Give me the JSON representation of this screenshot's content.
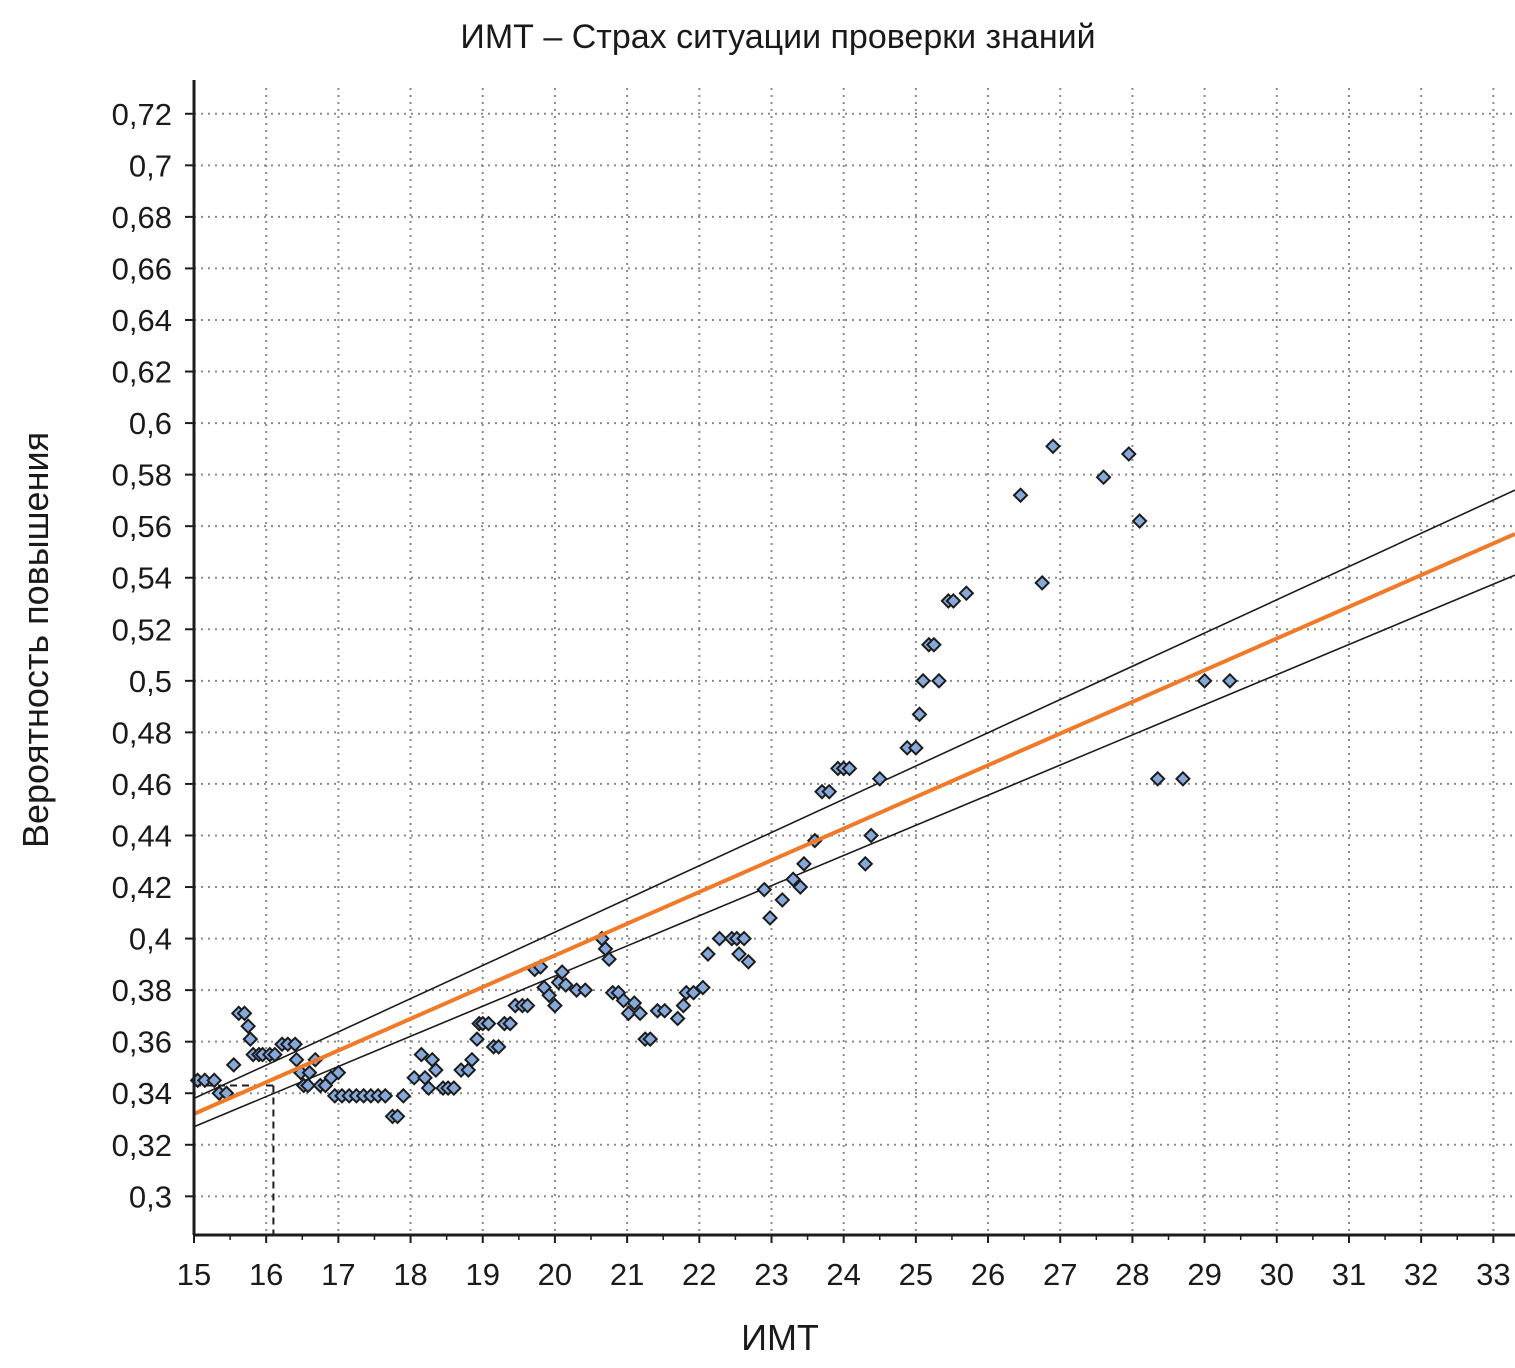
{
  "chart_data": {
    "type": "scatter",
    "title": "ИМТ – Страх ситуации проверки знаний",
    "xlabel": "ИМТ",
    "ylabel": "Вероятность повышения",
    "xlim": [
      15,
      33.3
    ],
    "ylim": [
      0.285,
      0.73
    ],
    "x_ticks": [
      "15",
      "16",
      "17",
      "18",
      "19",
      "20",
      "21",
      "22",
      "23",
      "24",
      "25",
      "26",
      "27",
      "28",
      "29",
      "30",
      "31",
      "32",
      "33"
    ],
    "y_ticks": [
      "0,3",
      "0,32",
      "0,34",
      "0,36",
      "0,38",
      "0,4",
      "0,42",
      "0,44",
      "0,46",
      "0,48",
      "0,5",
      "0,52",
      "0,54",
      "0,56",
      "0,58",
      "0,6",
      "0,62",
      "0,64",
      "0,66",
      "0,68",
      "0,7",
      "0,72"
    ],
    "grid": true,
    "grid_style": "dotted",
    "marker": "diamond",
    "colors": {
      "points": "#86a9dc",
      "point_edge": "#1c1c1c",
      "fit": "#ee7a2a",
      "ci": "#1c1c1c",
      "grid": "#8a8a8a",
      "reference": "#1c1c1c"
    },
    "fit_line": {
      "x": [
        15,
        33.3
      ],
      "y": [
        0.332,
        0.557
      ]
    },
    "ci_upper": {
      "x": [
        15,
        33.3
      ],
      "y": [
        0.338,
        0.574
      ]
    },
    "ci_lower": {
      "x": [
        15,
        33.3
      ],
      "y": [
        0.327,
        0.541
      ]
    },
    "reference_point": {
      "x": 16.1,
      "y": 0.343
    },
    "series": [
      {
        "points": [
          [
            15.05,
            0.345
          ],
          [
            15.15,
            0.345
          ],
          [
            15.28,
            0.345
          ],
          [
            15.35,
            0.34
          ],
          [
            15.45,
            0.34
          ],
          [
            15.55,
            0.351
          ],
          [
            15.62,
            0.371
          ],
          [
            15.7,
            0.371
          ],
          [
            15.75,
            0.366
          ],
          [
            15.78,
            0.361
          ],
          [
            15.82,
            0.355
          ],
          [
            15.9,
            0.355
          ],
          [
            15.95,
            0.355
          ],
          [
            16.05,
            0.355
          ],
          [
            16.12,
            0.355
          ],
          [
            16.22,
            0.359
          ],
          [
            16.3,
            0.359
          ],
          [
            16.4,
            0.359
          ],
          [
            16.42,
            0.353
          ],
          [
            16.48,
            0.348
          ],
          [
            16.52,
            0.343
          ],
          [
            16.58,
            0.343
          ],
          [
            16.6,
            0.348
          ],
          [
            16.68,
            0.353
          ],
          [
            16.75,
            0.343
          ],
          [
            16.82,
            0.343
          ],
          [
            16.9,
            0.346
          ],
          [
            16.95,
            0.339
          ],
          [
            17.0,
            0.348
          ],
          [
            17.05,
            0.339
          ],
          [
            17.15,
            0.339
          ],
          [
            17.25,
            0.339
          ],
          [
            17.35,
            0.339
          ],
          [
            17.45,
            0.339
          ],
          [
            17.55,
            0.339
          ],
          [
            17.65,
            0.339
          ],
          [
            17.75,
            0.331
          ],
          [
            17.82,
            0.331
          ],
          [
            17.9,
            0.339
          ],
          [
            18.05,
            0.346
          ],
          [
            18.15,
            0.355
          ],
          [
            18.2,
            0.346
          ],
          [
            18.25,
            0.342
          ],
          [
            18.3,
            0.353
          ],
          [
            18.35,
            0.349
          ],
          [
            18.45,
            0.342
          ],
          [
            18.52,
            0.342
          ],
          [
            18.6,
            0.342
          ],
          [
            18.7,
            0.349
          ],
          [
            18.8,
            0.349
          ],
          [
            18.85,
            0.353
          ],
          [
            18.92,
            0.361
          ],
          [
            18.95,
            0.367
          ],
          [
            19.0,
            0.367
          ],
          [
            19.08,
            0.367
          ],
          [
            19.15,
            0.358
          ],
          [
            19.22,
            0.358
          ],
          [
            19.3,
            0.367
          ],
          [
            19.38,
            0.367
          ],
          [
            19.45,
            0.374
          ],
          [
            19.55,
            0.374
          ],
          [
            19.62,
            0.374
          ],
          [
            19.72,
            0.388
          ],
          [
            19.8,
            0.389
          ],
          [
            19.85,
            0.381
          ],
          [
            19.92,
            0.378
          ],
          [
            20.0,
            0.374
          ],
          [
            20.05,
            0.383
          ],
          [
            20.1,
            0.387
          ],
          [
            20.15,
            0.382
          ],
          [
            20.3,
            0.38
          ],
          [
            20.42,
            0.38
          ],
          [
            20.65,
            0.4
          ],
          [
            20.7,
            0.396
          ],
          [
            20.75,
            0.392
          ],
          [
            20.8,
            0.379
          ],
          [
            20.88,
            0.379
          ],
          [
            20.95,
            0.376
          ],
          [
            21.02,
            0.371
          ],
          [
            21.1,
            0.375
          ],
          [
            21.18,
            0.371
          ],
          [
            21.25,
            0.361
          ],
          [
            21.32,
            0.361
          ],
          [
            21.42,
            0.372
          ],
          [
            21.52,
            0.372
          ],
          [
            21.7,
            0.369
          ],
          [
            21.78,
            0.374
          ],
          [
            21.82,
            0.379
          ],
          [
            21.92,
            0.379
          ],
          [
            22.05,
            0.381
          ],
          [
            22.12,
            0.394
          ],
          [
            22.28,
            0.4
          ],
          [
            22.45,
            0.4
          ],
          [
            22.52,
            0.4
          ],
          [
            22.55,
            0.394
          ],
          [
            22.62,
            0.4
          ],
          [
            22.68,
            0.391
          ],
          [
            22.9,
            0.419
          ],
          [
            22.98,
            0.408
          ],
          [
            23.15,
            0.415
          ],
          [
            23.3,
            0.423
          ],
          [
            23.4,
            0.42
          ],
          [
            23.45,
            0.429
          ],
          [
            23.6,
            0.438
          ],
          [
            23.7,
            0.457
          ],
          [
            23.8,
            0.457
          ],
          [
            23.92,
            0.466
          ],
          [
            24.0,
            0.466
          ],
          [
            24.08,
            0.466
          ],
          [
            24.3,
            0.429
          ],
          [
            24.38,
            0.44
          ],
          [
            24.5,
            0.462
          ],
          [
            24.88,
            0.474
          ],
          [
            25.0,
            0.474
          ],
          [
            25.05,
            0.487
          ],
          [
            25.1,
            0.5
          ],
          [
            25.18,
            0.514
          ],
          [
            25.25,
            0.514
          ],
          [
            25.32,
            0.5
          ],
          [
            25.45,
            0.531
          ],
          [
            25.52,
            0.531
          ],
          [
            25.7,
            0.534
          ],
          [
            26.45,
            0.572
          ],
          [
            26.75,
            0.538
          ],
          [
            26.9,
            0.591
          ],
          [
            27.6,
            0.579
          ],
          [
            27.95,
            0.588
          ],
          [
            28.1,
            0.562
          ],
          [
            28.35,
            0.462
          ],
          [
            28.7,
            0.462
          ],
          [
            29.0,
            0.5
          ],
          [
            29.35,
            0.5
          ]
        ]
      }
    ]
  }
}
